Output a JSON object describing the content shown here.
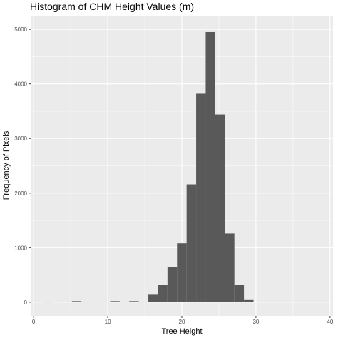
{
  "chart_data": {
    "type": "bar",
    "title": "Histogram of CHM Height Values (m)",
    "xlabel": "Tree Height",
    "ylabel": "Frequency of Pixels",
    "xlim": [
      -0.4,
      40.4
    ],
    "ylim": [
      -250,
      5250
    ],
    "x_ticks": [
      0,
      10,
      20,
      30,
      40
    ],
    "y_ticks": [
      0,
      1000,
      2000,
      3000,
      4000,
      5000
    ],
    "bin_width": 1.2857,
    "bins": [
      {
        "x0": 1.31,
        "x1": 2.6,
        "count": 8
      },
      {
        "x0": 5.16,
        "x1": 6.45,
        "count": 20
      },
      {
        "x0": 6.45,
        "x1": 7.74,
        "count": 8
      },
      {
        "x0": 7.74,
        "x1": 9.03,
        "count": 8
      },
      {
        "x0": 9.03,
        "x1": 10.32,
        "count": 8
      },
      {
        "x0": 10.32,
        "x1": 11.61,
        "count": 20
      },
      {
        "x0": 11.61,
        "x1": 12.9,
        "count": 8
      },
      {
        "x0": 12.9,
        "x1": 14.19,
        "count": 20
      },
      {
        "x0": 14.19,
        "x1": 15.48,
        "count": 8
      },
      {
        "x0": 15.48,
        "x1": 16.77,
        "count": 150
      },
      {
        "x0": 16.77,
        "x1": 18.06,
        "count": 320
      },
      {
        "x0": 18.06,
        "x1": 19.35,
        "count": 640
      },
      {
        "x0": 19.35,
        "x1": 20.64,
        "count": 1080
      },
      {
        "x0": 20.64,
        "x1": 21.93,
        "count": 2160
      },
      {
        "x0": 21.93,
        "x1": 23.22,
        "count": 3820
      },
      {
        "x0": 23.22,
        "x1": 24.51,
        "count": 4950
      },
      {
        "x0": 24.51,
        "x1": 25.8,
        "count": 3440
      },
      {
        "x0": 25.8,
        "x1": 27.09,
        "count": 1260
      },
      {
        "x0": 27.09,
        "x1": 28.38,
        "count": 320
      },
      {
        "x0": 28.38,
        "x1": 29.67,
        "count": 40
      }
    ],
    "grid": true,
    "colors": {
      "panel_background": "#ebebeb",
      "grid_major": "#ffffff",
      "bar_fill": "#595959",
      "tick_label": "#4d4d4d",
      "tick_mark": "#333333"
    }
  }
}
